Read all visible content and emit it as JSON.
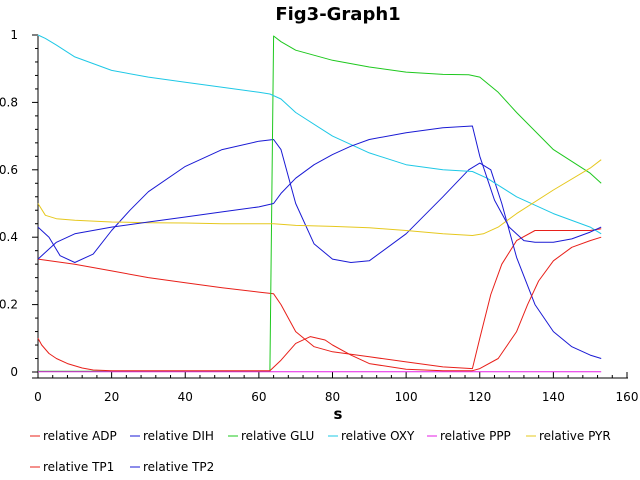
{
  "chart_data": {
    "type": "line",
    "title": "Fig3-Graph1",
    "xlabel": "s",
    "ylabel": "",
    "xlim": [
      0,
      160
    ],
    "ylim": [
      0,
      1
    ],
    "xticks": [
      0,
      20,
      40,
      60,
      80,
      100,
      120,
      140,
      160
    ],
    "yticks": [
      0,
      0.2,
      0.4,
      0.6,
      0.8,
      1
    ],
    "xtick_labels": [
      "0",
      "20",
      "40",
      "60",
      "80",
      "100",
      "120",
      "140",
      "160"
    ],
    "ytick_labels": [
      "0",
      "0.2",
      "0.4",
      "0.6",
      "0.8",
      "1"
    ],
    "grid": false,
    "legend_position": "bottom",
    "series": [
      {
        "name": "relative ADP",
        "color": "#e8201a",
        "x": [
          0,
          10,
          20,
          30,
          40,
          50,
          60,
          64,
          66,
          70,
          75,
          80,
          90,
          100,
          110,
          118,
          120,
          123,
          126,
          130,
          135,
          140,
          145,
          150,
          153
        ],
        "y": [
          0.335,
          0.32,
          0.3,
          0.28,
          0.265,
          0.25,
          0.237,
          0.232,
          0.2,
          0.12,
          0.075,
          0.06,
          0.045,
          0.03,
          0.015,
          0.01,
          0.1,
          0.23,
          0.32,
          0.39,
          0.42,
          0.42,
          0.42,
          0.42,
          0.425
        ]
      },
      {
        "name": "relative DIH",
        "color": "#1a1ad4",
        "x": [
          0,
          3,
          6,
          10,
          15,
          20,
          25,
          30,
          40,
          50,
          60,
          64,
          66,
          70,
          75,
          80,
          85,
          90,
          100,
          110,
          117,
          120,
          123,
          126,
          130,
          135,
          140,
          145,
          150,
          153
        ],
        "y": [
          0.43,
          0.4,
          0.345,
          0.325,
          0.35,
          0.42,
          0.48,
          0.535,
          0.61,
          0.66,
          0.685,
          0.69,
          0.66,
          0.5,
          0.38,
          0.335,
          0.325,
          0.33,
          0.41,
          0.52,
          0.6,
          0.62,
          0.6,
          0.5,
          0.34,
          0.2,
          0.12,
          0.075,
          0.05,
          0.04
        ]
      },
      {
        "name": "relative GLU",
        "color": "#1ec81e",
        "x": [
          0,
          20,
          40,
          60,
          63,
          64,
          66,
          70,
          80,
          90,
          100,
          110,
          117,
          120,
          125,
          130,
          140,
          150,
          153
        ],
        "y": [
          0.002,
          0.002,
          0.002,
          0.002,
          0.002,
          0.997,
          0.98,
          0.955,
          0.925,
          0.905,
          0.89,
          0.883,
          0.882,
          0.875,
          0.83,
          0.77,
          0.66,
          0.59,
          0.56
        ]
      },
      {
        "name": "relative OXY",
        "color": "#1ec8e6",
        "x": [
          0,
          2,
          5,
          10,
          20,
          30,
          40,
          50,
          60,
          63,
          66,
          70,
          80,
          90,
          100,
          110,
          118,
          122,
          130,
          140,
          150,
          153
        ],
        "y": [
          1.0,
          0.99,
          0.97,
          0.935,
          0.895,
          0.875,
          0.86,
          0.845,
          0.83,
          0.825,
          0.81,
          0.77,
          0.7,
          0.65,
          0.615,
          0.6,
          0.595,
          0.575,
          0.52,
          0.47,
          0.43,
          0.41
        ]
      },
      {
        "name": "relative PPP",
        "color": "#e61ee6",
        "x": [
          0,
          153
        ],
        "y": [
          0.001,
          0.001
        ]
      },
      {
        "name": "relative PYR",
        "color": "#e6c81e",
        "x": [
          0,
          2,
          5,
          10,
          20,
          30,
          40,
          50,
          60,
          64,
          70,
          80,
          90,
          100,
          110,
          118,
          121,
          125,
          130,
          140,
          150,
          153
        ],
        "y": [
          0.5,
          0.465,
          0.455,
          0.45,
          0.445,
          0.443,
          0.442,
          0.44,
          0.44,
          0.44,
          0.435,
          0.432,
          0.428,
          0.42,
          0.41,
          0.405,
          0.41,
          0.43,
          0.47,
          0.54,
          0.605,
          0.63
        ]
      },
      {
        "name": "relative TP1",
        "color": "#e8201a",
        "x": [
          0,
          1,
          3,
          5,
          8,
          12,
          15,
          20,
          40,
          60,
          63,
          66,
          70,
          74,
          78,
          80,
          85,
          90,
          100,
          110,
          118,
          120,
          125,
          130,
          133,
          136,
          140,
          145,
          150,
          153
        ],
        "y": [
          0.1,
          0.08,
          0.055,
          0.04,
          0.025,
          0.012,
          0.006,
          0.004,
          0.004,
          0.004,
          0.004,
          0.035,
          0.085,
          0.105,
          0.095,
          0.08,
          0.05,
          0.025,
          0.008,
          0.004,
          0.004,
          0.01,
          0.04,
          0.12,
          0.2,
          0.27,
          0.33,
          0.37,
          0.39,
          0.4
        ]
      },
      {
        "name": "relative TP2",
        "color": "#1a1ad4",
        "x": [
          0,
          5,
          10,
          20,
          30,
          40,
          50,
          60,
          64,
          66,
          70,
          75,
          80,
          85,
          90,
          100,
          110,
          118,
          120,
          124,
          128,
          132,
          135,
          140,
          145,
          150,
          153
        ],
        "y": [
          0.335,
          0.385,
          0.41,
          0.43,
          0.445,
          0.46,
          0.475,
          0.49,
          0.5,
          0.53,
          0.575,
          0.615,
          0.645,
          0.67,
          0.69,
          0.71,
          0.725,
          0.73,
          0.64,
          0.51,
          0.43,
          0.39,
          0.385,
          0.385,
          0.395,
          0.415,
          0.43
        ]
      }
    ]
  }
}
